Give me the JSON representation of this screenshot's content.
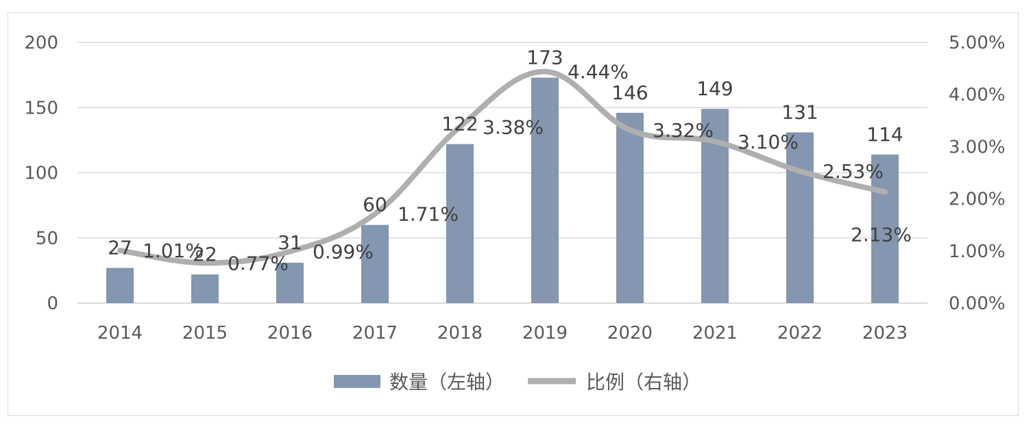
{
  "chart_data": {
    "type": "bar",
    "categories": [
      "2014",
      "2015",
      "2016",
      "2017",
      "2018",
      "2019",
      "2020",
      "2021",
      "2022",
      "2023"
    ],
    "series": [
      {
        "name": "数量（左轴）",
        "type": "bar",
        "axis": "left",
        "values": [
          27,
          22,
          31,
          60,
          122,
          173,
          146,
          149,
          131,
          114
        ],
        "labels": [
          "27",
          "22",
          "31",
          "60",
          "122",
          "173",
          "146",
          "149",
          "131",
          "114"
        ]
      },
      {
        "name": "比例（右轴）",
        "type": "line",
        "axis": "right",
        "values": [
          1.01,
          0.77,
          0.99,
          1.71,
          3.38,
          4.44,
          3.32,
          3.1,
          2.53,
          2.13
        ],
        "labels": [
          "1.01%",
          "0.77%",
          "0.99%",
          "1.71%",
          "3.38%",
          "4.44%",
          "3.32%",
          "3.10%",
          "2.53%",
          "2.13%"
        ]
      }
    ],
    "y_left": {
      "ylim": [
        0,
        200
      ],
      "ticks": [
        "0",
        "50",
        "100",
        "150",
        "200"
      ]
    },
    "y_right": {
      "ylim": [
        0,
        5
      ],
      "ticks": [
        "0.00%",
        "1.00%",
        "2.00%",
        "3.00%",
        "4.00%",
        "5.00%"
      ]
    },
    "grid": true,
    "legend": "bottom",
    "colors": {
      "bar": "#8496b0",
      "line": "#afafaf",
      "grid": "#d9d9d9",
      "text": "#595959"
    }
  }
}
